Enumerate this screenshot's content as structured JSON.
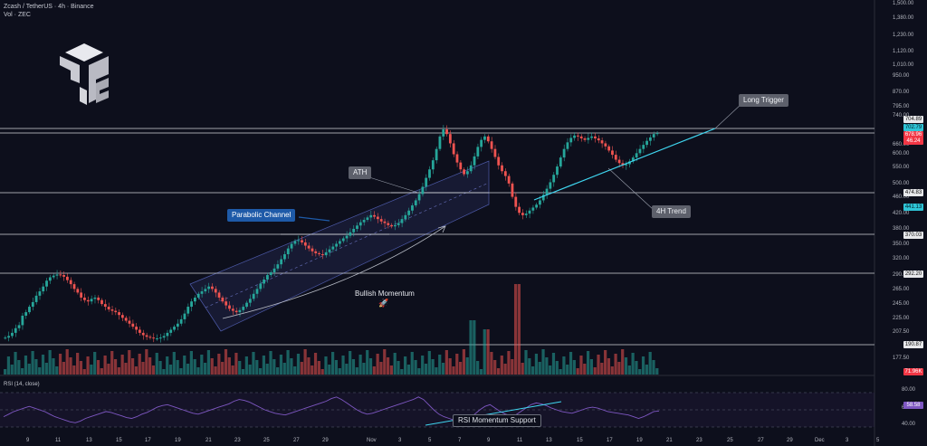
{
  "header": {
    "title": "Zcash / TetherUS · 4h · Binance",
    "vol_label": "Vol · ZEC"
  },
  "annotations": {
    "long_trigger": "Long Trigger",
    "ath": "ATH",
    "parabolic_channel": "Parabolic Channel",
    "trend_4h": "4H Trend",
    "bullish_momentum": "Bullish Momentum",
    "rsi_support": "RSI Momentum Support"
  },
  "price_tags": [
    {
      "value": "704.89",
      "bg": "#e6e7ea",
      "fg": "#111"
    },
    {
      "value": "702.79",
      "bg": "#2ec4d6",
      "fg": "#06202a"
    },
    {
      "value": "678.96",
      "bg": "#f23645",
      "fg": "#fff"
    },
    {
      "value": "46.24",
      "bg": "#f23645",
      "fg": "#fff"
    },
    {
      "value": "474.83",
      "bg": "#e6e7ea",
      "fg": "#111"
    },
    {
      "value": "441.13",
      "bg": "#2ec4d6",
      "fg": "#06202a"
    },
    {
      "value": "370.03",
      "bg": "#e6e7ea",
      "fg": "#111"
    },
    {
      "value": "292.20",
      "bg": "#e6e7ea",
      "fg": "#111"
    },
    {
      "value": "190.87",
      "bg": "#e6e7ea",
      "fg": "#111"
    },
    {
      "value": "71.96K",
      "bg": "#f23645",
      "fg": "#fff"
    },
    {
      "value": "58.58",
      "bg": "#7e57c2",
      "fg": "#fff"
    }
  ],
  "y_ticks": [
    "1,500.00",
    "1,380.00",
    "1,230.00",
    "1,120.00",
    "1,010.00",
    "950.00",
    "870.00",
    "795.00",
    "740.00",
    "660.00",
    "600.00",
    "550.00",
    "500.00",
    "460.00",
    "420.00",
    "380.00",
    "350.00",
    "320.00",
    "290.00",
    "265.00",
    "245.00",
    "225.00",
    "207.50",
    "177.50"
  ],
  "rsi_ticks": [
    "80.00",
    "60.00",
    "40.00"
  ],
  "x_ticks": [
    "9",
    "11",
    "13",
    "15",
    "17",
    "19",
    "21",
    "23",
    "25",
    "27",
    "29",
    "Nov",
    "3",
    "5",
    "7",
    "9",
    "11",
    "13",
    "15",
    "17",
    "19",
    "21",
    "23",
    "25",
    "27",
    "29",
    "Dec",
    "3",
    "5"
  ],
  "rsi_label": "RSI (14, close)",
  "chart_data": {
    "type": "candlestick",
    "title": "Zcash / TetherUS · 4h · Binance",
    "y_scale": "log",
    "ylim": [
      165,
      1500
    ],
    "horizontal_levels": [
      704.89,
      678.96,
      474.83,
      370.03,
      292.2,
      190.87
    ],
    "close_series": [
      206,
      208,
      212,
      218,
      222,
      235,
      240,
      248,
      255,
      265,
      272,
      280,
      290,
      296,
      299,
      301,
      300,
      297,
      291,
      284,
      276,
      270,
      262,
      258,
      256,
      260,
      262,
      258,
      252,
      248,
      244,
      242,
      240,
      236,
      232,
      228,
      224,
      220,
      216,
      212,
      209,
      207,
      206,
      205,
      205,
      206,
      208,
      212,
      216,
      220,
      224,
      230,
      238,
      248,
      256,
      262,
      268,
      272,
      276,
      280,
      276,
      270,
      262,
      256,
      250,
      245,
      242,
      240,
      243,
      248,
      254,
      260,
      268,
      276,
      285,
      292,
      300,
      305,
      312,
      320,
      330,
      340,
      352,
      362,
      368,
      370,
      365,
      358,
      352,
      346,
      342,
      340,
      338,
      344,
      350,
      356,
      362,
      368,
      374,
      380,
      388,
      396,
      404,
      412,
      418,
      424,
      430,
      426,
      420,
      414,
      410,
      405,
      402,
      405,
      410,
      420,
      430,
      442,
      456,
      470,
      488,
      510,
      538,
      566,
      598,
      640,
      690,
      720,
      700,
      662,
      620,
      590,
      566,
      550,
      560,
      580,
      612,
      648,
      676,
      690,
      670,
      640,
      610,
      580,
      560,
      544,
      520,
      480,
      452,
      436,
      430,
      434,
      442,
      450,
      458,
      470,
      486,
      504,
      524,
      548,
      576,
      608,
      640,
      666,
      684,
      694,
      690,
      682,
      676,
      684,
      690,
      682,
      674,
      662,
      650,
      634,
      618,
      600,
      588,
      580,
      584,
      594,
      608,
      624,
      640,
      656,
      672,
      686,
      700,
      704
    ],
    "rsi_series": [
      52,
      55,
      58,
      60,
      62,
      64,
      62,
      60,
      58,
      55,
      52,
      50,
      48,
      46,
      45,
      47,
      50,
      52,
      54,
      56,
      58,
      57,
      55,
      53,
      51,
      50,
      52,
      55,
      57,
      60,
      63,
      65,
      66,
      64,
      62,
      60,
      58,
      56,
      55,
      57,
      59,
      61,
      63,
      65,
      67,
      70,
      72,
      71,
      69,
      66,
      63,
      60,
      58,
      56,
      55,
      54,
      56,
      58,
      60,
      62,
      64,
      66,
      68,
      70,
      73,
      75,
      72,
      68,
      64,
      60,
      57,
      55,
      56,
      58,
      60,
      62,
      64,
      66,
      68,
      70,
      72,
      75,
      72,
      66,
      60,
      55,
      52,
      50,
      48,
      46,
      45,
      50,
      55,
      60,
      64,
      66,
      62,
      58,
      55,
      53,
      54,
      58,
      62,
      66,
      68,
      67,
      65,
      62,
      60,
      58,
      57,
      56,
      58,
      60,
      62,
      63,
      62,
      60,
      58,
      57,
      56,
      55,
      54,
      52,
      50,
      52,
      55,
      58,
      58.58
    ],
    "volume_peaks": [
      {
        "x": 519,
        "h": 0.6
      },
      {
        "x": 569,
        "h": 1.0
      },
      {
        "x": 537,
        "h": 0.5
      }
    ],
    "annotations": [
      "Long Trigger",
      "ATH",
      "Parabolic Channel",
      "4H Trend",
      "Bullish Momentum",
      "RSI Momentum Support"
    ]
  },
  "colors": {
    "bg": "#0d0f1c",
    "up": "#26a69a",
    "down": "#ef5350",
    "trend": "#3fd6f0",
    "rsi": "#7e57c2",
    "level": "#cfd2d8"
  }
}
